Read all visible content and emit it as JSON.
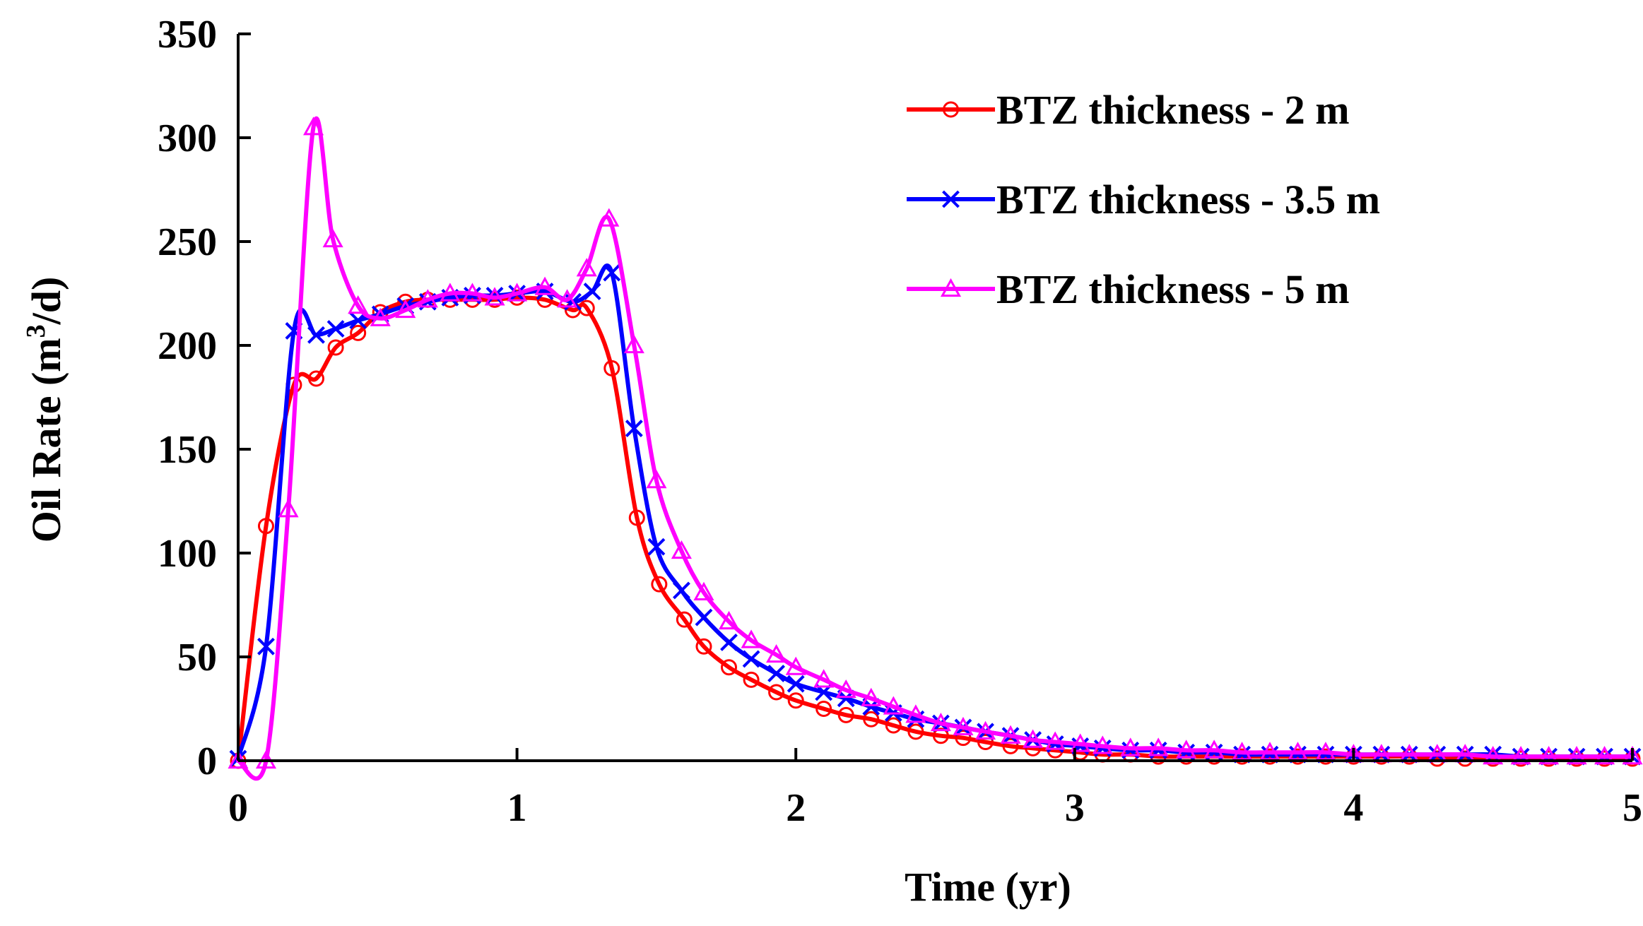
{
  "chart_data": {
    "type": "line",
    "title": "",
    "xlabel": "Time  (yr)",
    "ylabel_main": "Oil Rate (m",
    "ylabel_sup": "3",
    "ylabel_tail": "/d)",
    "xlim": [
      0,
      5
    ],
    "ylim": [
      0,
      350
    ],
    "xticks": [
      0,
      1,
      2,
      3,
      4,
      5
    ],
    "yticks": [
      0,
      50,
      100,
      150,
      200,
      250,
      300,
      350
    ],
    "xtick_labels": [
      "0",
      "1",
      "2",
      "3",
      "4",
      "5"
    ],
    "ytick_labels": [
      "0",
      "50",
      "100",
      "150",
      "200",
      "250",
      "300",
      "350"
    ],
    "grid": false,
    "legend_position": "top-right",
    "series": [
      {
        "name": "BTZ thickness - 2 m",
        "color": "#ff0000",
        "marker": "circle",
        "x": [
          0,
          0.1,
          0.2,
          0.28,
          0.35,
          0.43,
          0.51,
          0.6,
          0.68,
          0.76,
          0.84,
          0.92,
          1.0,
          1.1,
          1.2,
          1.25,
          1.34,
          1.43,
          1.51,
          1.6,
          1.67,
          1.76,
          1.84,
          1.93,
          2.0,
          2.1,
          2.18,
          2.27,
          2.35,
          2.43,
          2.52,
          2.6,
          2.68,
          2.77,
          2.85,
          2.93,
          3.02,
          3.1,
          3.2,
          3.3,
          3.4,
          3.5,
          3.6,
          3.7,
          3.8,
          3.9,
          4.0,
          4.1,
          4.2,
          4.3,
          4.4,
          4.5,
          4.6,
          4.7,
          4.8,
          4.9,
          5.0
        ],
        "y": [
          0,
          113,
          181,
          184,
          199,
          206,
          216,
          221,
          222,
          222,
          222,
          222,
          223,
          222,
          217,
          218,
          189,
          117,
          85,
          68,
          55,
          45,
          39,
          33,
          29,
          25,
          22,
          20,
          17,
          14,
          12,
          11,
          9,
          7,
          6,
          5,
          4,
          3,
          3,
          2,
          2,
          2,
          2,
          2,
          2,
          2,
          2,
          2,
          2,
          1,
          1,
          1,
          1,
          1,
          1,
          1,
          1
        ]
      },
      {
        "name": "BTZ thickness - 3.5 m",
        "color": "#0000ff",
        "marker": "x",
        "x": [
          0.0,
          0.1,
          0.2,
          0.28,
          0.35,
          0.43,
          0.51,
          0.6,
          0.68,
          0.76,
          0.84,
          0.92,
          1.0,
          1.1,
          1.2,
          1.27,
          1.34,
          1.42,
          1.5,
          1.59,
          1.67,
          1.76,
          1.84,
          1.93,
          2.0,
          2.1,
          2.18,
          2.27,
          2.35,
          2.43,
          2.52,
          2.6,
          2.68,
          2.77,
          2.85,
          2.93,
          3.02,
          3.1,
          3.2,
          3.3,
          3.4,
          3.5,
          3.6,
          3.7,
          3.8,
          3.9,
          4.0,
          4.1,
          4.2,
          4.3,
          4.4,
          4.5,
          4.6,
          4.7,
          4.8,
          4.9,
          5.0
        ],
        "y": [
          1,
          55,
          207,
          205,
          208,
          212,
          215,
          219,
          221,
          223,
          224,
          224,
          225,
          226,
          221,
          226,
          235,
          160,
          103,
          82,
          69,
          57,
          49,
          42,
          37,
          33,
          30,
          26,
          23,
          20,
          18,
          16,
          14,
          12,
          10,
          8,
          7,
          6,
          5,
          5,
          4,
          4,
          3,
          3,
          3,
          3,
          3,
          3,
          3,
          3,
          3,
          3,
          2,
          2,
          2,
          2,
          2
        ]
      },
      {
        "name": "BTZ thickness - 5 m",
        "color": "#ff00ff",
        "marker": "triangle",
        "x": [
          0.0,
          0.1,
          0.18,
          0.27,
          0.34,
          0.43,
          0.51,
          0.6,
          0.68,
          0.76,
          0.84,
          0.92,
          1.0,
          1.1,
          1.18,
          1.25,
          1.33,
          1.42,
          1.5,
          1.59,
          1.67,
          1.76,
          1.84,
          1.93,
          2.0,
          2.1,
          2.18,
          2.27,
          2.35,
          2.43,
          2.52,
          2.6,
          2.68,
          2.77,
          2.85,
          2.93,
          3.02,
          3.1,
          3.2,
          3.3,
          3.4,
          3.5,
          3.6,
          3.7,
          3.8,
          3.9,
          4.0,
          4.1,
          4.2,
          4.3,
          4.4,
          4.5,
          4.6,
          4.7,
          4.8,
          4.9,
          5.0
        ],
        "y": [
          0,
          0,
          121,
          305,
          251,
          219,
          213,
          217,
          222,
          225,
          225,
          223,
          225,
          228,
          222,
          237,
          261,
          200,
          135,
          101,
          81,
          67,
          58,
          51,
          45,
          39,
          34,
          30,
          26,
          22,
          18,
          16,
          14,
          12,
          10,
          9,
          8,
          7,
          6,
          6,
          5,
          5,
          4,
          4,
          4,
          4,
          3,
          3,
          3,
          3,
          3,
          2,
          2,
          2,
          2,
          2,
          2
        ]
      }
    ]
  }
}
